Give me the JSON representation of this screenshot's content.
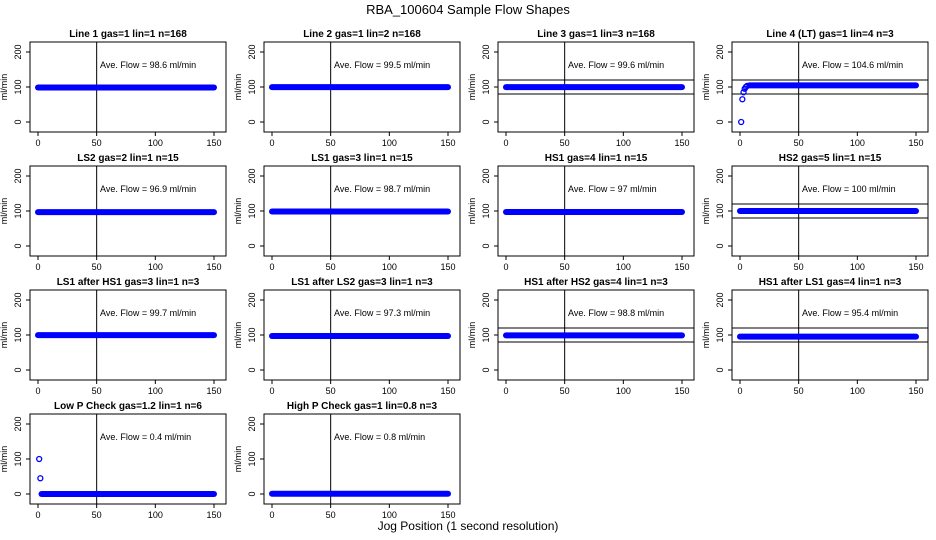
{
  "page": {
    "title": "RBA_100604  Sample Flow Shapes",
    "xlabel": "Jog Position (1 second resolution)"
  },
  "colors": {
    "points": "#0000ff",
    "lines": "#000000"
  },
  "chart_data": [
    {
      "type": "scatter",
      "title": "Line 1 gas=1 lin=1 n=168",
      "ylabel": "ml/min",
      "annotation": "Ave. Flow =  98.6  ml/min",
      "xlim": [
        0,
        150
      ],
      "ylim": [
        0,
        200
      ],
      "xticks": [
        0,
        50,
        100,
        150
      ],
      "yticks": [
        0,
        100,
        200
      ],
      "vline": 50,
      "hlines": [],
      "series": [
        {
          "x": [
            0,
            150
          ],
          "y": [
            98.6,
            98.6
          ],
          "kind": "band"
        }
      ]
    },
    {
      "type": "scatter",
      "title": "Line 2 gas=1 lin=2 n=168",
      "ylabel": "ml/min",
      "annotation": "Ave. Flow =  99.5  ml/min",
      "xlim": [
        0,
        150
      ],
      "ylim": [
        0,
        200
      ],
      "xticks": [
        0,
        50,
        100,
        150
      ],
      "yticks": [
        0,
        100,
        200
      ],
      "vline": 50,
      "hlines": [],
      "series": [
        {
          "x": [
            0,
            150
          ],
          "y": [
            99.5,
            99.5
          ],
          "kind": "band"
        }
      ]
    },
    {
      "type": "scatter",
      "title": "Line 3 gas=1 lin=3 n=168",
      "ylabel": "ml/min",
      "annotation": "Ave. Flow =  99.6  ml/min",
      "xlim": [
        0,
        150
      ],
      "ylim": [
        0,
        200
      ],
      "xticks": [
        0,
        50,
        100,
        150
      ],
      "yticks": [
        0,
        100,
        200
      ],
      "vline": 50,
      "hlines": [
        80,
        120
      ],
      "series": [
        {
          "x": [
            0,
            150
          ],
          "y": [
            99.6,
            99.6
          ],
          "kind": "band"
        }
      ]
    },
    {
      "type": "scatter",
      "title": "Line 4 (LT) gas=1 lin=4 n=3",
      "ylabel": "ml/min",
      "annotation": "Ave. Flow =  104.6  ml/min",
      "xlim": [
        0,
        150
      ],
      "ylim": [
        0,
        200
      ],
      "xticks": [
        0,
        50,
        100,
        150
      ],
      "yticks": [
        0,
        100,
        200
      ],
      "vline": 50,
      "hlines": [
        80,
        120
      ],
      "series": [
        {
          "x": [
            1,
            2,
            3,
            4,
            5,
            6,
            8,
            150
          ],
          "y": [
            0,
            65,
            85,
            95,
            100,
            103,
            104.6,
            104.6
          ],
          "kind": "ramp"
        }
      ]
    },
    {
      "type": "scatter",
      "title": "LS2 gas=2 lin=1 n=15",
      "ylabel": "ml/min",
      "annotation": "Ave. Flow =  96.9  ml/min",
      "xlim": [
        0,
        150
      ],
      "ylim": [
        0,
        200
      ],
      "xticks": [
        0,
        50,
        100,
        150
      ],
      "yticks": [
        0,
        100,
        200
      ],
      "vline": 50,
      "hlines": [],
      "series": [
        {
          "x": [
            0,
            150
          ],
          "y": [
            96.9,
            96.9
          ],
          "kind": "band"
        }
      ]
    },
    {
      "type": "scatter",
      "title": "LS1 gas=3 lin=1 n=15",
      "ylabel": "ml/min",
      "annotation": "Ave. Flow =  98.7  ml/min",
      "xlim": [
        0,
        150
      ],
      "ylim": [
        0,
        200
      ],
      "xticks": [
        0,
        50,
        100,
        150
      ],
      "yticks": [
        0,
        100,
        200
      ],
      "vline": 50,
      "hlines": [],
      "series": [
        {
          "x": [
            0,
            150
          ],
          "y": [
            98.7,
            98.7
          ],
          "kind": "band"
        }
      ]
    },
    {
      "type": "scatter",
      "title": "HS1 gas=4 lin=1 n=15",
      "ylabel": "ml/min",
      "annotation": "Ave. Flow =  97  ml/min",
      "xlim": [
        0,
        150
      ],
      "ylim": [
        0,
        200
      ],
      "xticks": [
        0,
        50,
        100,
        150
      ],
      "yticks": [
        0,
        100,
        200
      ],
      "vline": 50,
      "hlines": [],
      "series": [
        {
          "x": [
            0,
            150
          ],
          "y": [
            97,
            97
          ],
          "kind": "band"
        }
      ]
    },
    {
      "type": "scatter",
      "title": "HS2 gas=5 lin=1 n=15",
      "ylabel": "ml/min",
      "annotation": "Ave. Flow =  100  ml/min",
      "xlim": [
        0,
        150
      ],
      "ylim": [
        0,
        200
      ],
      "xticks": [
        0,
        50,
        100,
        150
      ],
      "yticks": [
        0,
        100,
        200
      ],
      "vline": 50,
      "hlines": [
        80,
        120
      ],
      "series": [
        {
          "x": [
            0,
            150
          ],
          "y": [
            100,
            100
          ],
          "kind": "band"
        }
      ]
    },
    {
      "type": "scatter",
      "title": "LS1 after HS1 gas=3 lin=1 n=3",
      "ylabel": "ml/min",
      "annotation": "Ave. Flow =  99.7  ml/min",
      "xlim": [
        0,
        150
      ],
      "ylim": [
        0,
        200
      ],
      "xticks": [
        0,
        50,
        100,
        150
      ],
      "yticks": [
        0,
        100,
        200
      ],
      "vline": 50,
      "hlines": [],
      "series": [
        {
          "x": [
            0,
            150
          ],
          "y": [
            99.7,
            99.7
          ],
          "kind": "band"
        }
      ]
    },
    {
      "type": "scatter",
      "title": "LS1 after LS2 gas=3 lin=1 n=3",
      "ylabel": "ml/min",
      "annotation": "Ave. Flow =  97.3  ml/min",
      "xlim": [
        0,
        150
      ],
      "ylim": [
        0,
        200
      ],
      "xticks": [
        0,
        50,
        100,
        150
      ],
      "yticks": [
        0,
        100,
        200
      ],
      "vline": 50,
      "hlines": [],
      "series": [
        {
          "x": [
            0,
            150
          ],
          "y": [
            97.3,
            97.3
          ],
          "kind": "band"
        }
      ]
    },
    {
      "type": "scatter",
      "title": "HS1 after HS2 gas=4 lin=1 n=3",
      "ylabel": "ml/min",
      "annotation": "Ave. Flow =  98.8  ml/min",
      "xlim": [
        0,
        150
      ],
      "ylim": [
        0,
        200
      ],
      "xticks": [
        0,
        50,
        100,
        150
      ],
      "yticks": [
        0,
        100,
        200
      ],
      "vline": 50,
      "hlines": [
        80,
        120
      ],
      "series": [
        {
          "x": [
            0,
            150
          ],
          "y": [
            98.8,
            98.8
          ],
          "kind": "band"
        }
      ]
    },
    {
      "type": "scatter",
      "title": "HS1 after LS1 gas=4 lin=1 n=3",
      "ylabel": "ml/min",
      "annotation": "Ave. Flow =  95.4  ml/min",
      "xlim": [
        0,
        150
      ],
      "ylim": [
        0,
        200
      ],
      "xticks": [
        0,
        50,
        100,
        150
      ],
      "yticks": [
        0,
        100,
        200
      ],
      "vline": 50,
      "hlines": [
        80,
        120
      ],
      "series": [
        {
          "x": [
            0,
            150
          ],
          "y": [
            95.4,
            95.4
          ],
          "kind": "band"
        }
      ]
    },
    {
      "type": "scatter",
      "title": "Low P Check gas=1.2 lin=1 n=6",
      "ylabel": "ml/min",
      "annotation": "Ave. Flow =  0.4  ml/min",
      "xlim": [
        0,
        150
      ],
      "ylim": [
        0,
        200
      ],
      "xticks": [
        0,
        50,
        100,
        150
      ],
      "yticks": [
        0,
        100,
        200
      ],
      "vline": 50,
      "hlines": [],
      "series": [
        {
          "x": [
            1,
            2,
            3,
            150
          ],
          "y": [
            100,
            45,
            0,
            0
          ],
          "kind": "ramp"
        }
      ]
    },
    {
      "type": "scatter",
      "title": "High P Check gas=1 lin=0.8 n=3",
      "ylabel": "ml/min",
      "annotation": "Ave. Flow =  0.8  ml/min",
      "xlim": [
        0,
        150
      ],
      "ylim": [
        0,
        200
      ],
      "xticks": [
        0,
        50,
        100,
        150
      ],
      "yticks": [
        0,
        100,
        200
      ],
      "vline": 50,
      "hlines": [],
      "series": [
        {
          "x": [
            0,
            150
          ],
          "y": [
            0.8,
            0.8
          ],
          "kind": "band"
        }
      ]
    }
  ]
}
